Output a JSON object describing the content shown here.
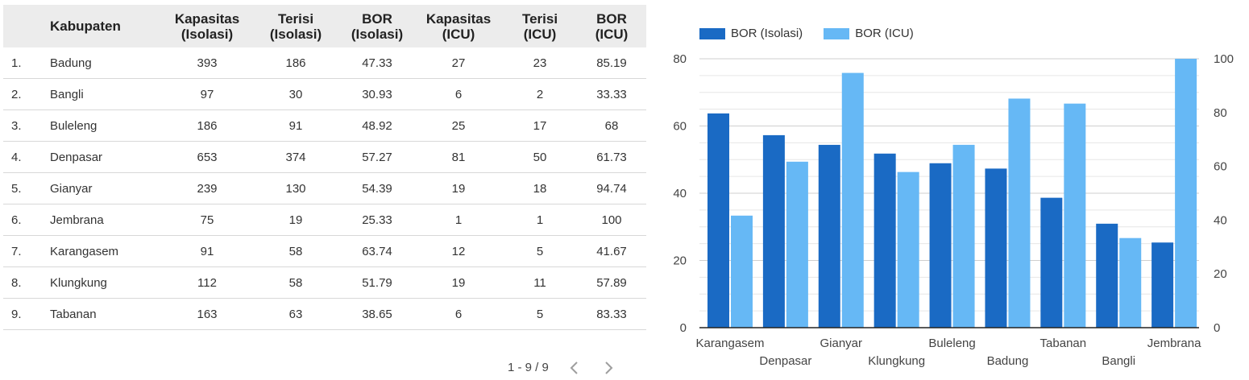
{
  "table": {
    "columns": [
      "",
      "Kabupaten",
      "Kapasitas (Isolasi)",
      "Terisi (Isolasi)",
      "BOR (Isolasi)",
      "Kapasitas (ICU)",
      "Terisi (ICU)",
      "BOR (ICU)"
    ],
    "header_lines": [
      [
        "",
        ""
      ],
      [
        "Kabupaten",
        ""
      ],
      [
        "Kapasitas",
        "(Isolasi)"
      ],
      [
        "Terisi",
        "(Isolasi)"
      ],
      [
        "BOR",
        "(Isolasi)"
      ],
      [
        "Kapasitas",
        "(ICU)"
      ],
      [
        "Terisi",
        "(ICU)"
      ],
      [
        "BOR",
        "(ICU)"
      ]
    ],
    "rows": [
      [
        "1.",
        "Badung",
        "393",
        "186",
        "47.33",
        "27",
        "23",
        "85.19"
      ],
      [
        "2.",
        "Bangli",
        "97",
        "30",
        "30.93",
        "6",
        "2",
        "33.33"
      ],
      [
        "3.",
        "Buleleng",
        "186",
        "91",
        "48.92",
        "25",
        "17",
        "68"
      ],
      [
        "4.",
        "Denpasar",
        "653",
        "374",
        "57.27",
        "81",
        "50",
        "61.73"
      ],
      [
        "5.",
        "Gianyar",
        "239",
        "130",
        "54.39",
        "19",
        "18",
        "94.74"
      ],
      [
        "6.",
        "Jembrana",
        "75",
        "19",
        "25.33",
        "1",
        "1",
        "100"
      ],
      [
        "7.",
        "Karangasem",
        "91",
        "58",
        "63.74",
        "12",
        "5",
        "41.67"
      ],
      [
        "8.",
        "Klungkung",
        "112",
        "58",
        "51.79",
        "19",
        "11",
        "57.89"
      ],
      [
        "9.",
        "Tabanan",
        "163",
        "63",
        "38.65",
        "6",
        "5",
        "83.33"
      ]
    ]
  },
  "pagination": {
    "label": "1 - 9 / 9",
    "prev_icon": "chevron-left-icon",
    "next_icon": "chevron-right-icon"
  },
  "chart_data": {
    "type": "bar",
    "categories": [
      "Karangasem",
      "Denpasar",
      "Gianyar",
      "Klungkung",
      "Buleleng",
      "Badung",
      "Tabanan",
      "Bangli",
      "Jembrana"
    ],
    "series": [
      {
        "name": "BOR (Isolasi)",
        "axis": "left",
        "color": "#1a6ac4",
        "values": [
          63.74,
          57.27,
          54.39,
          51.79,
          48.92,
          47.33,
          38.65,
          30.93,
          25.33
        ]
      },
      {
        "name": "BOR (ICU)",
        "axis": "right",
        "color": "#66b8f5",
        "values": [
          41.67,
          61.73,
          94.74,
          57.89,
          68,
          85.19,
          83.33,
          33.33,
          100
        ]
      }
    ],
    "y_left": {
      "min": 0,
      "max": 80,
      "ticks": [
        0,
        20,
        40,
        60,
        80
      ]
    },
    "y_right": {
      "min": 0,
      "max": 100,
      "ticks": [
        0,
        20,
        40,
        60,
        80,
        100
      ]
    },
    "legend_position": "top-left",
    "grid": true
  }
}
